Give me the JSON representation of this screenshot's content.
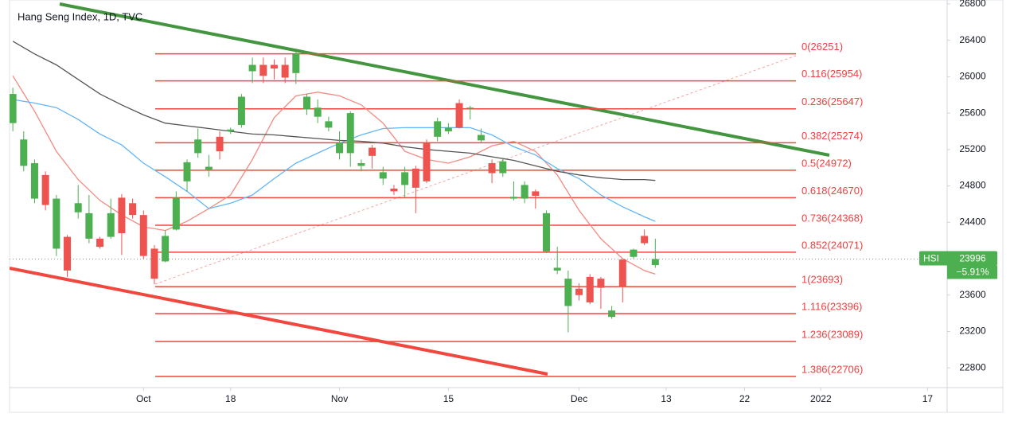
{
  "chart_data": {
    "type": "candlestick",
    "title": "Hang Seng Index, 1D, TVC",
    "up_color": "#4caf50",
    "down_color": "#ef5350",
    "candles": {
      "open": [
        25490,
        25020,
        24660,
        24920,
        24110,
        24240,
        24510,
        24220,
        24220,
        24240,
        24670,
        24610,
        24480,
        24110,
        23970,
        24320,
        24850,
        25160,
        24980,
        25340,
        25400,
        25470,
        26060,
        26130,
        26130,
        26130,
        26040,
        25640,
        25560,
        25440,
        25160,
        25160,
        25020,
        25220,
        24880,
        24770,
        24810,
        24990,
        25270,
        25340,
        25400,
        25710,
        25650,
        25300,
        25050,
        24940,
        24660,
        24660,
        24740,
        24080,
        23870,
        23480,
        23670,
        23800,
        23780,
        23360,
        23990,
        24020,
        24250,
        23930
      ],
      "high": [
        25880,
        25400,
        25090,
        24960,
        24700,
        24260,
        24810,
        24700,
        24240,
        24660,
        24710,
        24660,
        24530,
        24150,
        24310,
        24740,
        25090,
        25430,
        25140,
        25400,
        25440,
        25810,
        26210,
        26210,
        26190,
        26210,
        26270,
        25810,
        25750,
        25560,
        25400,
        25620,
        25090,
        25250,
        25010,
        24810,
        25010,
        25020,
        25310,
        25550,
        25490,
        25750,
        25680,
        25430,
        25090,
        25110,
        24850,
        24850,
        24760,
        24530,
        24130,
        23870,
        23730,
        23830,
        23800,
        23480,
        23990,
        24110,
        24320,
        24220
      ],
      "low": [
        25400,
        24960,
        24610,
        24530,
        24030,
        23800,
        24440,
        24170,
        24110,
        24220,
        24040,
        24440,
        24000,
        23720,
        23960,
        24310,
        24740,
        25110,
        24900,
        25090,
        25370,
        25440,
        25930,
        25930,
        25970,
        25930,
        25920,
        25580,
        25490,
        25400,
        25090,
        25010,
        24960,
        24990,
        24810,
        24700,
        24670,
        24500,
        24830,
        25290,
        25370,
        25430,
        25530,
        25270,
        24830,
        24900,
        24640,
        24610,
        24550,
        24060,
        23830,
        23190,
        23540,
        23500,
        23450,
        23340,
        23520,
        24000,
        24150,
        23900
      ],
      "close": [
        25810,
        25310,
        25050,
        24590,
        24660,
        23870,
        24610,
        24500,
        24130,
        24500,
        24280,
        24480,
        24030,
        23780,
        24250,
        24670,
        25060,
        25310,
        25010,
        25180,
        25420,
        25780,
        26130,
        26010,
        26090,
        25990,
        26250,
        25780,
        25660,
        25510,
        25270,
        25600,
        25050,
        25130,
        24950,
        24740,
        24950,
        24780,
        24850,
        25510,
        25440,
        25440,
        25660,
        25360,
        24940,
        25070,
        24680,
        24810,
        24690,
        24500,
        23900,
        23780,
        23600,
        23520,
        23680,
        23430,
        23690,
        24100,
        24170,
        23996
      ]
    },
    "overlays": [
      {
        "color": "#f28b82",
        "x": [
          0,
          2,
          4,
          6,
          8,
          10,
          12,
          14,
          16,
          18,
          20,
          22,
          24,
          26,
          28,
          30,
          32,
          34,
          36,
          38,
          40,
          42,
          44,
          46,
          48,
          50,
          52,
          54,
          56,
          58,
          59
        ],
        "values": [
          26010,
          25620,
          25180,
          24870,
          24640,
          24480,
          24350,
          24310,
          24410,
          24550,
          24700,
          25090,
          25550,
          25790,
          25830,
          25790,
          25690,
          25490,
          25180,
          25090,
          25050,
          25120,
          25240,
          25290,
          25180,
          24920,
          24530,
          24220,
          24000,
          23870,
          23830
        ]
      },
      {
        "color": "#64b5f6",
        "x": [
          0,
          2,
          4,
          6,
          8,
          10,
          12,
          14,
          16,
          18,
          20,
          22,
          24,
          26,
          28,
          30,
          32,
          34,
          36,
          38,
          40,
          42,
          44,
          46,
          48,
          50,
          52,
          54,
          56,
          58,
          59
        ],
        "values": [
          25750,
          25710,
          25660,
          25530,
          25370,
          25250,
          25050,
          24900,
          24740,
          24550,
          24610,
          24700,
          24880,
          25050,
          25160,
          25270,
          25360,
          25430,
          25440,
          25440,
          25440,
          25440,
          25360,
          25230,
          25140,
          24990,
          24880,
          24700,
          24570,
          24460,
          24410
        ]
      },
      {
        "color": "#555555",
        "x": [
          0,
          2,
          4,
          6,
          8,
          10,
          12,
          14,
          16,
          18,
          20,
          22,
          24,
          26,
          28,
          30,
          32,
          34,
          36,
          38,
          40,
          42,
          44,
          46,
          48,
          50,
          52,
          54,
          56,
          58,
          59
        ],
        "values": [
          26390,
          26250,
          26130,
          25970,
          25810,
          25690,
          25580,
          25490,
          25460,
          25430,
          25400,
          25370,
          25360,
          25340,
          25320,
          25300,
          25290,
          25270,
          25230,
          25200,
          25180,
          25160,
          25120,
          25080,
          25020,
          24960,
          24920,
          24890,
          24870,
          24870,
          24860
        ]
      }
    ],
    "fib_levels": {
      "color": "#f0473f",
      "values": [
        26251,
        25954,
        25647,
        25274,
        24972,
        24670,
        24368,
        24071,
        23693,
        23396,
        23089,
        22706
      ],
      "value_labels": [
        "0(26251)",
        "0.116(25954)",
        "0.236(25647)",
        "0.382(25274)",
        "0.5(24972)",
        "0.618(24670)",
        "0.736(24368)",
        "0.852(24071)",
        "1(23693)",
        "1.116(23396)",
        "1.236(23089)",
        "1.386(22706)"
      ]
    },
    "symbol": "HSI",
    "last_price": 23996,
    "change": {
      "value": -5.91,
      "label": "−5.91%"
    },
    "xlim": [
      -0.3,
      85.8
    ],
    "xticks": [
      {
        "value": 12,
        "label": "Oct"
      },
      {
        "value": 20,
        "label": "18"
      },
      {
        "value": 30,
        "label": "Nov"
      },
      {
        "value": 40,
        "label": "15"
      },
      {
        "value": 52,
        "label": "Dec"
      },
      {
        "value": 60,
        "label": "13"
      },
      {
        "value": 67.2,
        "label": "22"
      },
      {
        "value": 74.2,
        "label": "2022"
      },
      {
        "value": 84,
        "label": "17"
      }
    ],
    "ylim": [
      22583,
      26843
    ],
    "yticks": [
      22800,
      23200,
      23600,
      24000,
      24400,
      24800,
      25200,
      25600,
      26000,
      26400,
      26800
    ],
    "grid": false
  }
}
